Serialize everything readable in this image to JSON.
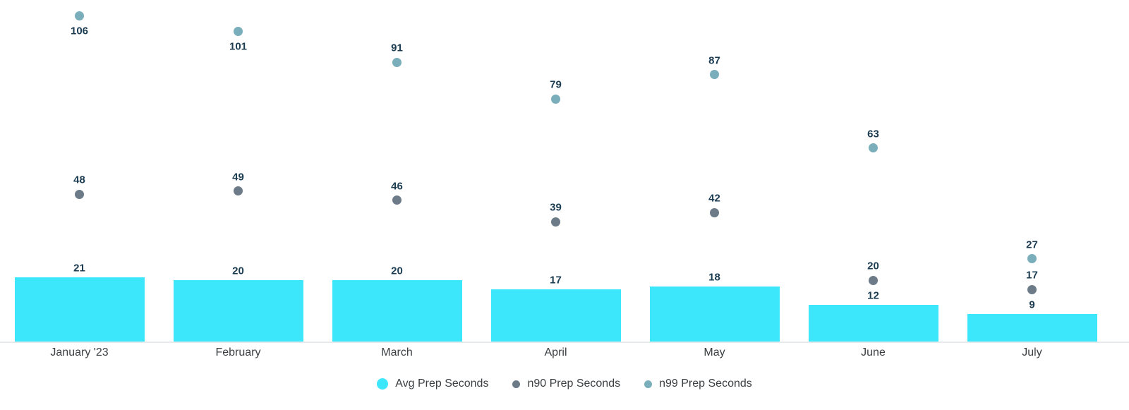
{
  "chart_data": {
    "type": "bar",
    "subtype": "bar-with-scatter-overlay",
    "categories": [
      "January '23",
      "February",
      "March",
      "April",
      "May",
      "June",
      "July"
    ],
    "series": [
      {
        "name": "Avg Prep Seconds",
        "mark": "bar",
        "color": "#3de7fb",
        "values": [
          21,
          20,
          20,
          17,
          18,
          12,
          9
        ]
      },
      {
        "name": "n90 Prep Seconds",
        "mark": "scatter",
        "color": "#6c7b87",
        "values": [
          48,
          49,
          46,
          39,
          42,
          20,
          17
        ]
      },
      {
        "name": "n99 Prep Seconds",
        "mark": "scatter",
        "color": "#79aeba",
        "values": [
          106,
          101,
          91,
          79,
          87,
          63,
          27
        ]
      }
    ],
    "title": "",
    "xlabel": "",
    "ylabel": "",
    "ylim": [
      0,
      111
    ],
    "grid": false,
    "data_labels": true,
    "data_label_color": "#1c3c52",
    "axis_line_color": "#e7eaec",
    "legend_position": "bottom"
  }
}
